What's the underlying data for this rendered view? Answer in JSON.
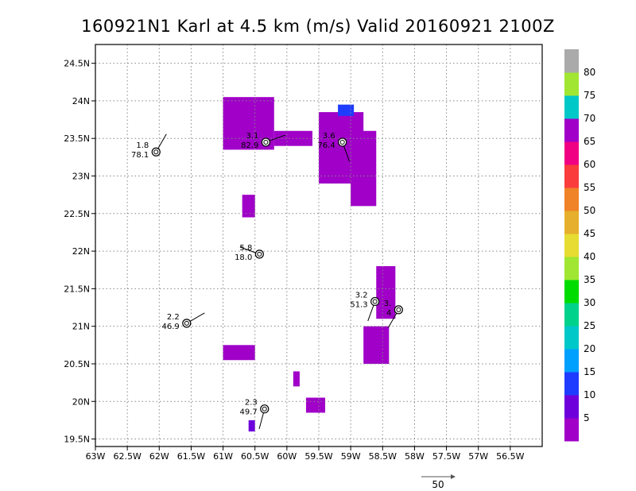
{
  "chart_data": {
    "type": "heatmap",
    "title": "160921N1 Karl at 4.5 km (m/s) Valid 20160921 2100Z",
    "x_unit": "degrees longitude (W)",
    "y_unit": "degrees latitude (N)",
    "xlim": [
      -63.0,
      -56.0
    ],
    "ylim": [
      19.4,
      24.75
    ],
    "x_ticks": [
      {
        "value": -63.0,
        "label": "63W"
      },
      {
        "value": -62.5,
        "label": "62.5W"
      },
      {
        "value": -62.0,
        "label": "62W"
      },
      {
        "value": -61.5,
        "label": "61.5W"
      },
      {
        "value": -61.0,
        "label": "61W"
      },
      {
        "value": -60.5,
        "label": "60.5W"
      },
      {
        "value": -60.0,
        "label": "60W"
      },
      {
        "value": -59.5,
        "label": "59.5W"
      },
      {
        "value": -59.0,
        "label": "59W"
      },
      {
        "value": -58.5,
        "label": "58.5W"
      },
      {
        "value": -58.0,
        "label": "58W"
      },
      {
        "value": -57.5,
        "label": "57.5W"
      },
      {
        "value": -57.0,
        "label": "57W"
      },
      {
        "value": -56.5,
        "label": "56.5W"
      }
    ],
    "y_ticks": [
      {
        "value": 19.5,
        "label": "19.5N"
      },
      {
        "value": 20.0,
        "label": "20N"
      },
      {
        "value": 20.5,
        "label": "20.5N"
      },
      {
        "value": 21.0,
        "label": "21N"
      },
      {
        "value": 21.5,
        "label": "21.5N"
      },
      {
        "value": 22.0,
        "label": "22N"
      },
      {
        "value": 22.5,
        "label": "22.5N"
      },
      {
        "value": 23.0,
        "label": "23N"
      },
      {
        "value": 23.5,
        "label": "23.5N"
      },
      {
        "value": 24.0,
        "label": "24N"
      },
      {
        "value": 24.5,
        "label": "24.5N"
      }
    ],
    "grid": true,
    "grid_style": "dotted",
    "colorbar": {
      "placement": "right",
      "levels": [
        {
          "label": "5",
          "color": "#a000c8"
        },
        {
          "label": "10",
          "color": "#6e00dc"
        },
        {
          "label": "15",
          "color": "#1e3cff"
        },
        {
          "label": "20",
          "color": "#00a0ff"
        },
        {
          "label": "25",
          "color": "#00c8c8"
        },
        {
          "label": "30",
          "color": "#00d28c"
        },
        {
          "label": "35",
          "color": "#00dc00"
        },
        {
          "label": "40",
          "color": "#a0e632"
        },
        {
          "label": "45",
          "color": "#e6dc32"
        },
        {
          "label": "50",
          "color": "#e6af2d"
        },
        {
          "label": "55",
          "color": "#f08228"
        },
        {
          "label": "60",
          "color": "#fa3c3c"
        },
        {
          "label": "65",
          "color": "#f00082"
        },
        {
          "label": "70",
          "color": "#a000c8"
        },
        {
          "label": "75",
          "color": "#00c8c8"
        },
        {
          "label": "80",
          "color": "#a0e632"
        },
        {
          "label": "",
          "color": "#aaaaaa"
        }
      ]
    },
    "wind_regions": [
      {
        "lon": [
          -61.0,
          -60.2
        ],
        "lat": [
          23.35,
          24.05
        ],
        "level": "5"
      },
      {
        "lon": [
          -59.5,
          -58.8
        ],
        "lat": [
          22.9,
          23.85
        ],
        "level": "5"
      },
      {
        "lon": [
          -59.0,
          -58.6
        ],
        "lat": [
          22.6,
          23.6
        ],
        "level": "5"
      },
      {
        "lon": [
          -59.2,
          -58.95
        ],
        "lat": [
          23.8,
          23.95
        ],
        "level": "15"
      },
      {
        "lon": [
          -60.2,
          -59.6
        ],
        "lat": [
          23.4,
          23.6
        ],
        "level": "5"
      },
      {
        "lon": [
          -60.7,
          -60.5
        ],
        "lat": [
          22.45,
          22.75
        ],
        "level": "5"
      },
      {
        "lon": [
          -58.6,
          -58.3
        ],
        "lat": [
          21.1,
          21.8
        ],
        "level": "5"
      },
      {
        "lon": [
          -58.8,
          -58.4
        ],
        "lat": [
          20.5,
          21.0
        ],
        "level": "5"
      },
      {
        "lon": [
          -61.0,
          -60.5
        ],
        "lat": [
          20.55,
          20.75
        ],
        "level": "5"
      },
      {
        "lon": [
          -59.7,
          -59.4
        ],
        "lat": [
          19.85,
          20.05
        ],
        "level": "5"
      },
      {
        "lon": [
          -59.9,
          -59.8
        ],
        "lat": [
          20.2,
          20.4
        ],
        "level": "5"
      },
      {
        "lon": [
          -60.6,
          -60.5
        ],
        "lat": [
          19.6,
          19.75
        ],
        "level": "10"
      }
    ],
    "centers": [
      {
        "lon": -62.05,
        "lat": 23.32,
        "label_top": "1.8",
        "label_bottom": "78.1",
        "barb_dir": 30
      },
      {
        "lon": -60.33,
        "lat": 23.45,
        "label_top": "3.1",
        "label_bottom": "82.9",
        "barb_dir": 70
      },
      {
        "lon": -59.13,
        "lat": 23.45,
        "label_top": "3.6",
        "label_bottom": "76.4",
        "barb_dir": 160
      },
      {
        "lon": -60.43,
        "lat": 21.96,
        "label_top": "5.8",
        "label_bottom": "18.0",
        "barb_dir": 290
      },
      {
        "lon": -61.57,
        "lat": 21.04,
        "label_top": "2.2",
        "label_bottom": "46.9",
        "barb_dir": 60
      },
      {
        "lon": -58.62,
        "lat": 21.33,
        "label_top": "3.2",
        "label_bottom": "51.3",
        "barb_dir": 200
      },
      {
        "lon": -58.25,
        "lat": 21.22,
        "label_top": "3.",
        "label_bottom": "4",
        "barb_dir": 210
      },
      {
        "lon": -60.35,
        "lat": 19.9,
        "label_top": "2.3",
        "label_bottom": "49.7",
        "barb_dir": 195
      }
    ],
    "reference_vector": {
      "label": "50"
    }
  }
}
